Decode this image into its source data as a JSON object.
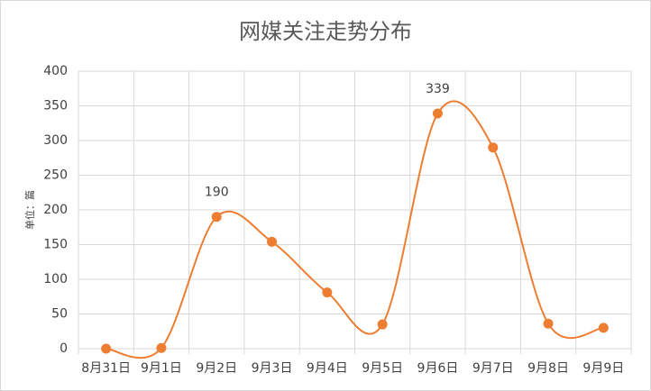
{
  "chart_data": {
    "type": "line",
    "title": "网媒关注走势分布",
    "y_label": "单位：篇",
    "categories": [
      "8月31日",
      "9月1日",
      "9月2日",
      "9月3日",
      "9月4日",
      "9月5日",
      "9月6日",
      "9月7日",
      "9月8日",
      "9月9日"
    ],
    "series": [
      {
        "name": "网媒",
        "color": "#ed7d31",
        "values": [
          0,
          1,
          190,
          154,
          81,
          35,
          339,
          290,
          36,
          30
        ]
      }
    ],
    "ylim": [
      0,
      400
    ],
    "yticks": [
      0,
      50,
      100,
      150,
      200,
      250,
      300,
      350,
      400
    ],
    "grid": true,
    "smooth": true,
    "data_labels": "peaks",
    "legend": false
  }
}
